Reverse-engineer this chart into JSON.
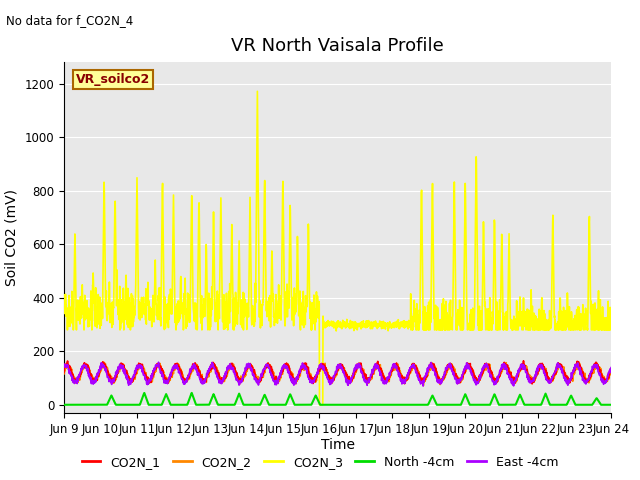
{
  "title": "VR North Vaisala Profile",
  "no_data_text": "No data for f_CO2N_4",
  "ylabel": "Soil CO2 (mV)",
  "xlabel": "Time",
  "legend_label": "VR_soilco2",
  "ylim": [
    -30,
    1280
  ],
  "xlim": [
    0,
    15
  ],
  "xtick_positions": [
    0,
    1,
    2,
    3,
    4,
    5,
    6,
    7,
    8,
    9,
    10,
    11,
    12,
    13,
    14,
    15
  ],
  "xtick_labels": [
    "Jun 9",
    "Jun 10",
    "Jun 11",
    "Jun 12",
    "Jun 13",
    "Jun 14",
    "Jun 15",
    "Jun 16",
    "Jun 17",
    "Jun 18",
    "Jun 19",
    "Jun 20",
    "Jun 21",
    "Jun 22",
    "Jun 23",
    "Jun 24"
  ],
  "ytick_values": [
    0,
    200,
    400,
    600,
    800,
    1000,
    1200
  ],
  "line_colors": {
    "CO2N_1": "#ff0000",
    "CO2N_2": "#ff8800",
    "CO2N_3": "#ffff00",
    "North_4cm": "#00dd00",
    "East_4cm": "#aa00ff"
  },
  "line_widths": {
    "CO2N_1": 1.2,
    "CO2N_2": 1.2,
    "CO2N_3": 1.2,
    "North_4cm": 1.5,
    "East_4cm": 1.2
  },
  "bg_color": "#e8e8e8",
  "fig_bg": "#ffffff",
  "legend_box_color": "#ffff99",
  "legend_box_edge": "#aa6600",
  "legend_text_color": "#880000",
  "title_fontsize": 13,
  "axis_label_fontsize": 10,
  "tick_fontsize": 8.5
}
